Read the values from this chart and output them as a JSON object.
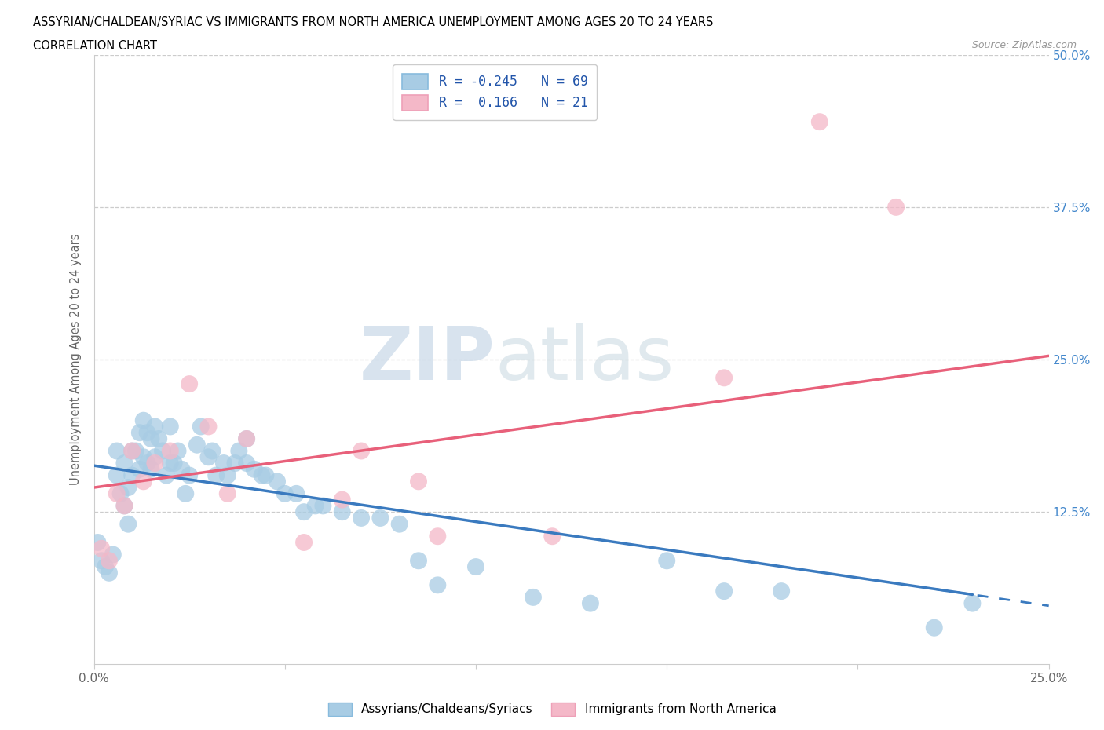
{
  "title_line1": "ASSYRIAN/CHALDEAN/SYRIAC VS IMMIGRANTS FROM NORTH AMERICA UNEMPLOYMENT AMONG AGES 20 TO 24 YEARS",
  "title_line2": "CORRELATION CHART",
  "source": "Source: ZipAtlas.com",
  "ylabel": "Unemployment Among Ages 20 to 24 years",
  "xlim": [
    0.0,
    0.25
  ],
  "ylim": [
    0.0,
    0.5
  ],
  "xticks": [
    0.0,
    0.05,
    0.1,
    0.15,
    0.2,
    0.25
  ],
  "xticklabels": [
    "0.0%",
    "",
    "",
    "",
    "",
    "25.0%"
  ],
  "yticks": [
    0.0,
    0.125,
    0.25,
    0.375,
    0.5
  ],
  "yticklabels": [
    "",
    "12.5%",
    "25.0%",
    "37.5%",
    "50.0%"
  ],
  "blue_fill": "#a8cce4",
  "pink_fill": "#f4b8c8",
  "blue_line_color": "#3a7abf",
  "pink_line_color": "#e8607a",
  "R_blue": -0.245,
  "N_blue": 69,
  "R_pink": 0.166,
  "N_pink": 21,
  "legend_label_blue": "Assyrians/Chaldeans/Syriacs",
  "legend_label_pink": "Immigrants from North America",
  "legend_r_color": "#2255aa",
  "watermark_zip": "ZIP",
  "watermark_atlas": "atlas",
  "blue_trend_x0": 0.0,
  "blue_trend_y0": 0.163,
  "blue_trend_x1": 0.25,
  "blue_trend_y1": 0.048,
  "pink_trend_x0": 0.0,
  "pink_trend_y0": 0.145,
  "pink_trend_x1": 0.25,
  "pink_trend_y1": 0.253,
  "blue_x": [
    0.001,
    0.002,
    0.003,
    0.004,
    0.005,
    0.006,
    0.006,
    0.007,
    0.008,
    0.008,
    0.009,
    0.009,
    0.01,
    0.01,
    0.011,
    0.012,
    0.012,
    0.013,
    0.013,
    0.014,
    0.014,
    0.015,
    0.015,
    0.016,
    0.016,
    0.017,
    0.018,
    0.019,
    0.02,
    0.02,
    0.021,
    0.022,
    0.023,
    0.024,
    0.025,
    0.027,
    0.028,
    0.03,
    0.031,
    0.032,
    0.034,
    0.035,
    0.037,
    0.038,
    0.04,
    0.04,
    0.042,
    0.044,
    0.045,
    0.048,
    0.05,
    0.053,
    0.055,
    0.058,
    0.06,
    0.065,
    0.07,
    0.075,
    0.08,
    0.085,
    0.09,
    0.1,
    0.115,
    0.13,
    0.15,
    0.165,
    0.18,
    0.22,
    0.23
  ],
  "blue_y": [
    0.1,
    0.085,
    0.08,
    0.075,
    0.09,
    0.155,
    0.175,
    0.14,
    0.165,
    0.13,
    0.115,
    0.145,
    0.175,
    0.155,
    0.175,
    0.19,
    0.16,
    0.2,
    0.17,
    0.165,
    0.19,
    0.185,
    0.16,
    0.195,
    0.17,
    0.185,
    0.175,
    0.155,
    0.165,
    0.195,
    0.165,
    0.175,
    0.16,
    0.14,
    0.155,
    0.18,
    0.195,
    0.17,
    0.175,
    0.155,
    0.165,
    0.155,
    0.165,
    0.175,
    0.165,
    0.185,
    0.16,
    0.155,
    0.155,
    0.15,
    0.14,
    0.14,
    0.125,
    0.13,
    0.13,
    0.125,
    0.12,
    0.12,
    0.115,
    0.085,
    0.065,
    0.08,
    0.055,
    0.05,
    0.085,
    0.06,
    0.06,
    0.03,
    0.05
  ],
  "pink_x": [
    0.002,
    0.004,
    0.006,
    0.008,
    0.01,
    0.013,
    0.016,
    0.02,
    0.025,
    0.03,
    0.035,
    0.04,
    0.055,
    0.065,
    0.07,
    0.085,
    0.09,
    0.12,
    0.165,
    0.19,
    0.21
  ],
  "pink_y": [
    0.095,
    0.085,
    0.14,
    0.13,
    0.175,
    0.15,
    0.165,
    0.175,
    0.23,
    0.195,
    0.14,
    0.185,
    0.1,
    0.135,
    0.175,
    0.15,
    0.105,
    0.105,
    0.235,
    0.445,
    0.375
  ]
}
